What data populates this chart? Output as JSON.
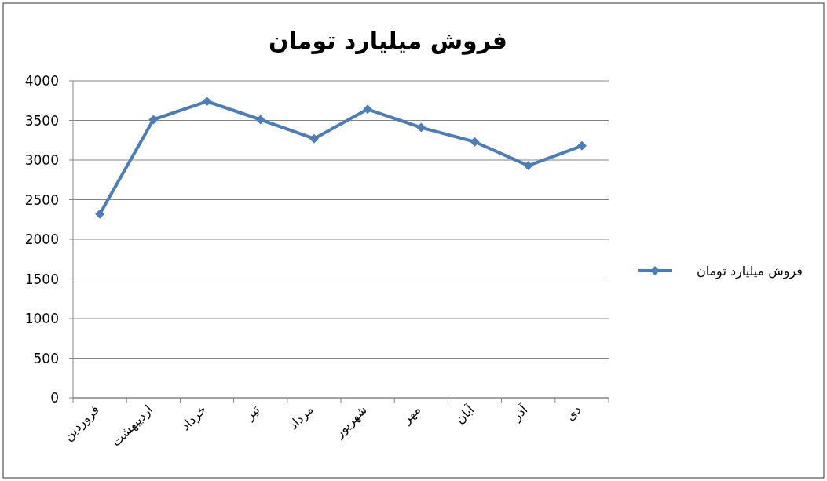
{
  "chart_data": {
    "type": "line",
    "title": "فروش میلیارد تومان",
    "categories": [
      "فروردین",
      "اردیبهشت",
      "خرداد",
      "تیر",
      "مرداد",
      "شهریور",
      "مهر",
      "آبان",
      "آذر",
      "دی"
    ],
    "series": [
      {
        "name": "فروش میلیارد تومان",
        "color": "#4a7ebb",
        "values": [
          2320,
          3510,
          3740,
          3510,
          3270,
          3640,
          3410,
          3230,
          2930,
          3180
        ]
      }
    ],
    "ylim": [
      0,
      4000
    ],
    "yticks": [
      0,
      500,
      1000,
      1500,
      2000,
      2500,
      3000,
      3500,
      4000
    ],
    "grid": "y",
    "legend": "right",
    "marker": "diamond",
    "line_style": "solid"
  }
}
